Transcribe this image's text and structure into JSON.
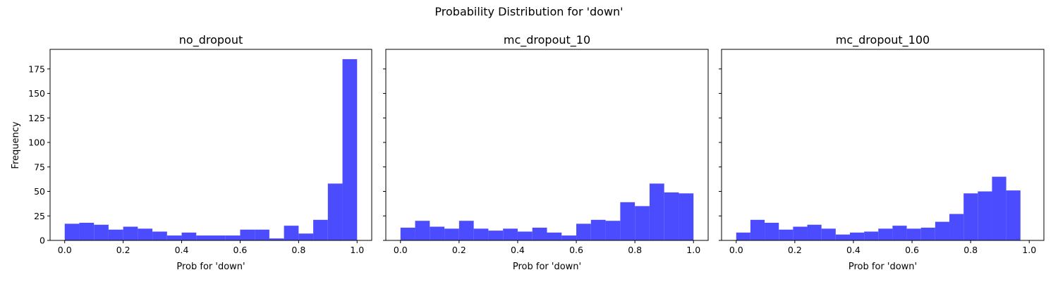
{
  "figure": {
    "suptitle": "Probability Distribution for 'down'"
  },
  "chart_data": [
    {
      "type": "bar",
      "title": "no_dropout",
      "xlabel": "Prob for 'down'",
      "ylabel": "Frequency",
      "xlim": [
        -0.05,
        1.05
      ],
      "ylim": [
        0,
        195
      ],
      "xticks": [
        0.0,
        0.2,
        0.4,
        0.6,
        0.8,
        1.0
      ],
      "xtick_labels": [
        "0.0",
        "0.2",
        "0.4",
        "0.6",
        "0.8",
        "1.0"
      ],
      "yticks": [
        0,
        25,
        50,
        75,
        100,
        125,
        150,
        175
      ],
      "ytick_labels": [
        "0",
        "25",
        "50",
        "75",
        "100",
        "125",
        "150",
        "175"
      ],
      "color": "#4c4cff",
      "bin_edges": [
        0.0,
        0.05,
        0.1,
        0.15,
        0.2,
        0.25,
        0.3,
        0.35,
        0.4,
        0.45,
        0.5,
        0.55,
        0.6,
        0.65,
        0.7,
        0.75,
        0.8,
        0.85,
        0.9,
        0.95,
        1.0
      ],
      "values": [
        17,
        18,
        16,
        11,
        14,
        12,
        9,
        5,
        8,
        5,
        5,
        5,
        11,
        11,
        2,
        15,
        7,
        21,
        58,
        185
      ]
    },
    {
      "type": "bar",
      "title": "mc_dropout_10",
      "xlabel": "Prob for 'down'",
      "ylabel": "",
      "xlim": [
        -0.05,
        1.05
      ],
      "ylim": [
        0,
        195
      ],
      "xticks": [
        0.0,
        0.2,
        0.4,
        0.6,
        0.8,
        1.0
      ],
      "xtick_labels": [
        "0.0",
        "0.2",
        "0.4",
        "0.6",
        "0.8",
        "1.0"
      ],
      "yticks": [
        0,
        25,
        50,
        75,
        100,
        125,
        150,
        175
      ],
      "ytick_labels": [],
      "color": "#4c4cff",
      "bin_edges": [
        0.0,
        0.05,
        0.1,
        0.15,
        0.2,
        0.25,
        0.3,
        0.35,
        0.4,
        0.45,
        0.5,
        0.55,
        0.6,
        0.65,
        0.7,
        0.75,
        0.8,
        0.85,
        0.9,
        0.95,
        1.0
      ],
      "values": [
        13,
        20,
        14,
        12,
        20,
        12,
        10,
        12,
        9,
        13,
        8,
        5,
        17,
        21,
        20,
        39,
        35,
        58,
        49,
        48
      ]
    },
    {
      "type": "bar",
      "title": "mc_dropout_100",
      "xlabel": "Prob for 'down'",
      "ylabel": "",
      "xlim": [
        -0.05,
        1.05
      ],
      "ylim": [
        0,
        195
      ],
      "xticks": [
        0.0,
        0.2,
        0.4,
        0.6,
        0.8,
        1.0
      ],
      "xtick_labels": [
        "0.0",
        "0.2",
        "0.4",
        "0.6",
        "0.8",
        "1.0"
      ],
      "yticks": [
        0,
        25,
        50,
        75,
        100,
        125,
        150,
        175
      ],
      "ytick_labels": [],
      "color": "#4c4cff",
      "bin_edges": [
        0.0,
        0.0485,
        0.097,
        0.1455,
        0.194,
        0.2425,
        0.291,
        0.3395,
        0.388,
        0.4365,
        0.485,
        0.5335,
        0.582,
        0.6305,
        0.679,
        0.7275,
        0.776,
        0.8245,
        0.873,
        0.9215,
        0.97
      ],
      "values": [
        8,
        21,
        18,
        11,
        14,
        16,
        12,
        6,
        8,
        9,
        12,
        15,
        12,
        13,
        19,
        27,
        48,
        50,
        65,
        51
      ]
    }
  ]
}
